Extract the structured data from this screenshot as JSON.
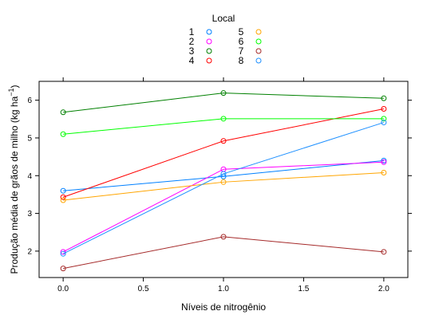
{
  "chart_data": {
    "type": "line",
    "xlabel": "Níveis de nitrogênio",
    "ylabel_main": "Produção média de grãos de milho (kg ha",
    "ylabel_sup": "−1",
    "ylabel_close": ")",
    "xlim": [
      -0.15,
      2.15
    ],
    "ylim": [
      1.3,
      6.5
    ],
    "x_ticks": [
      "0.0",
      "0.5",
      "1.0",
      "1.5",
      "2.0"
    ],
    "y_ticks": [
      "2",
      "3",
      "4",
      "5",
      "6"
    ],
    "x": [
      0.0,
      1.0,
      2.0
    ],
    "legend_title": "Local",
    "legend_placement": "top-center",
    "marker": "open-circle",
    "grid": false,
    "series": [
      {
        "name": "1",
        "color": "#0080ff",
        "values": [
          3.6,
          3.98,
          4.4
        ]
      },
      {
        "name": "2",
        "color": "#ff00ff",
        "values": [
          1.98,
          4.17,
          4.36
        ]
      },
      {
        "name": "3",
        "color": "#008000",
        "values": [
          5.68,
          6.19,
          6.05
        ]
      },
      {
        "name": "4",
        "color": "#ff0000",
        "values": [
          3.43,
          4.92,
          5.77
        ]
      },
      {
        "name": "5",
        "color": "#ffa500",
        "values": [
          3.35,
          3.83,
          4.08
        ]
      },
      {
        "name": "6",
        "color": "#00ff00",
        "values": [
          5.1,
          5.51,
          5.51
        ]
      },
      {
        "name": "7",
        "color": "#a52a2a",
        "values": [
          1.54,
          2.38,
          1.98
        ]
      },
      {
        "name": "8",
        "color": "#1e90ff",
        "values": [
          1.93,
          4.05,
          5.41
        ]
      }
    ]
  }
}
